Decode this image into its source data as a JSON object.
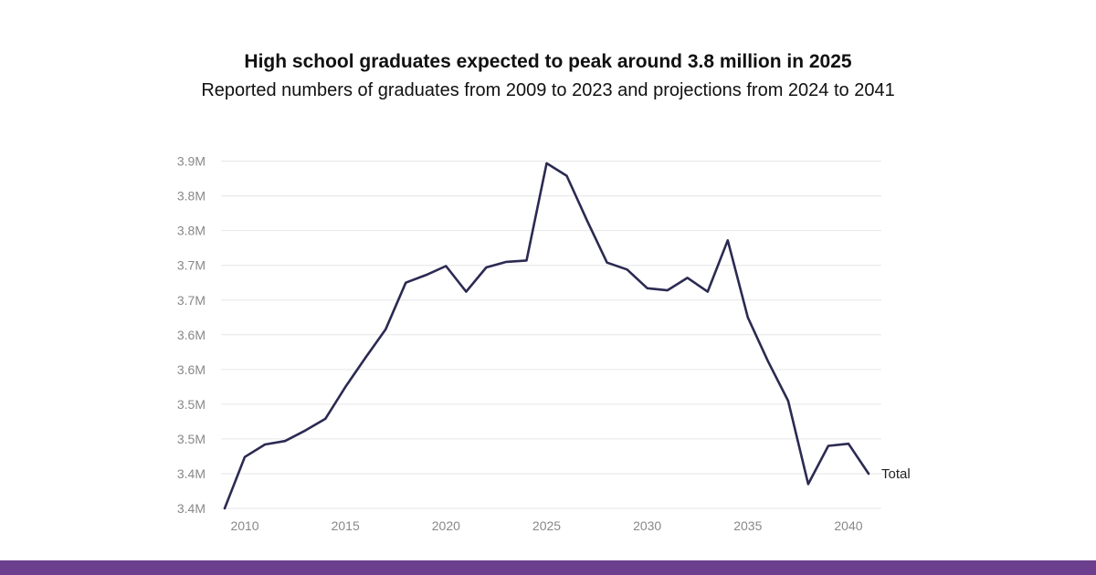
{
  "header": {
    "title": "High school graduates expected to peak around 3.8 million in 2025",
    "subtitle": "Reported numbers of graduates from 2009 to 2023 and projections from 2024 to 2041"
  },
  "colors": {
    "line": "#2b2a52",
    "grid": "#e6e6e6",
    "tick_text": "#888888",
    "bottom_bar": "#6b3f8d"
  },
  "chart_data": {
    "type": "line",
    "title": "",
    "xlabel": "",
    "ylabel": "",
    "ylim": [
      3.35,
      3.86
    ],
    "xlim": [
      2009,
      2041
    ],
    "grid": true,
    "y_tick_values": [
      3.35,
      3.4,
      3.45,
      3.5,
      3.55,
      3.6,
      3.65,
      3.7,
      3.75,
      3.8,
      3.85
    ],
    "y_tick_labels": [
      "3.4M",
      "3.4M",
      "3.5M",
      "3.5M",
      "3.6M",
      "3.6M",
      "3.7M",
      "3.7M",
      "3.8M",
      "3.8M",
      "3.9M"
    ],
    "x_tick_values": [
      2010,
      2015,
      2020,
      2025,
      2030,
      2035,
      2040
    ],
    "x_tick_labels": [
      "2010",
      "2015",
      "2020",
      "2025",
      "2030",
      "2035",
      "2040"
    ],
    "series": [
      {
        "name": "Total",
        "x": [
          2009,
          2010,
          2011,
          2012,
          2013,
          2014,
          2015,
          2016,
          2017,
          2018,
          2019,
          2020,
          2021,
          2022,
          2023,
          2024,
          2025,
          2026,
          2027,
          2028,
          2029,
          2030,
          2031,
          2032,
          2033,
          2034,
          2035,
          2036,
          2037,
          2038,
          2039,
          2040,
          2041
        ],
        "values": [
          3.35,
          3.424,
          3.442,
          3.447,
          3.462,
          3.479,
          3.525,
          3.567,
          3.608,
          3.675,
          3.686,
          3.699,
          3.662,
          3.697,
          3.705,
          3.707,
          3.847,
          3.829,
          3.765,
          3.704,
          3.694,
          3.667,
          3.664,
          3.682,
          3.662,
          3.736,
          3.625,
          3.562,
          3.505,
          3.385,
          3.44,
          3.443,
          3.4
        ]
      }
    ]
  }
}
